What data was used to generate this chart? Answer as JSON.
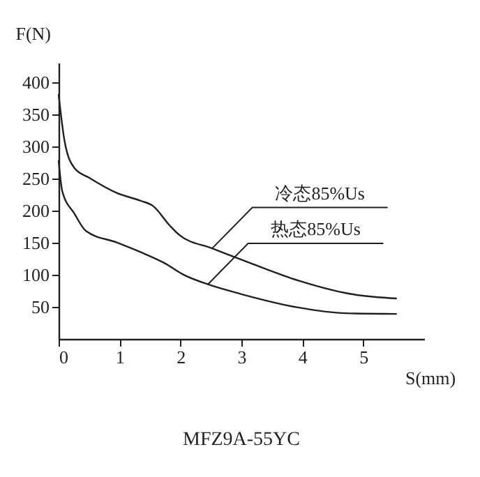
{
  "chart_data": {
    "type": "line",
    "title": "MFZ9A-55YC",
    "xlabel": "S(mm)",
    "ylabel": "F(N)",
    "xlim": [
      0,
      6
    ],
    "ylim": [
      0,
      430
    ],
    "xticks": [
      0,
      1,
      2,
      3,
      4,
      5
    ],
    "yticks": [
      50,
      100,
      150,
      200,
      250,
      300,
      350,
      400
    ],
    "grid": false,
    "marker": "none",
    "line_style": "solid",
    "series": [
      {
        "color": "#231f20",
        "x": [
          0,
          0.1,
          0.26,
          0.5,
          0.96,
          1.35,
          1.55,
          1.82,
          1.98,
          2.52,
          3.15,
          3.93,
          4.79,
          5.55
        ],
        "values": [
          381,
          307,
          266,
          251,
          227,
          215,
          207,
          177,
          162,
          141,
          118,
          91,
          70,
          63
        ]
      },
      {
        "color": "#231f20",
        "x": [
          0,
          0.06,
          0.26,
          0.45,
          0.96,
          1.35,
          1.74,
          2.05,
          2.45,
          2.99,
          3.93,
          4.71,
          5.55
        ],
        "values": [
          278,
          230,
          195,
          168,
          150,
          135,
          118,
          100,
          85,
          70,
          49,
          40,
          39
        ]
      }
    ],
    "annotations": [
      {
        "text": "冷态85%Us",
        "x": 2.52,
        "y": 141
      },
      {
        "text": "热态85%Us",
        "x": 2.45,
        "y": 85
      }
    ]
  }
}
